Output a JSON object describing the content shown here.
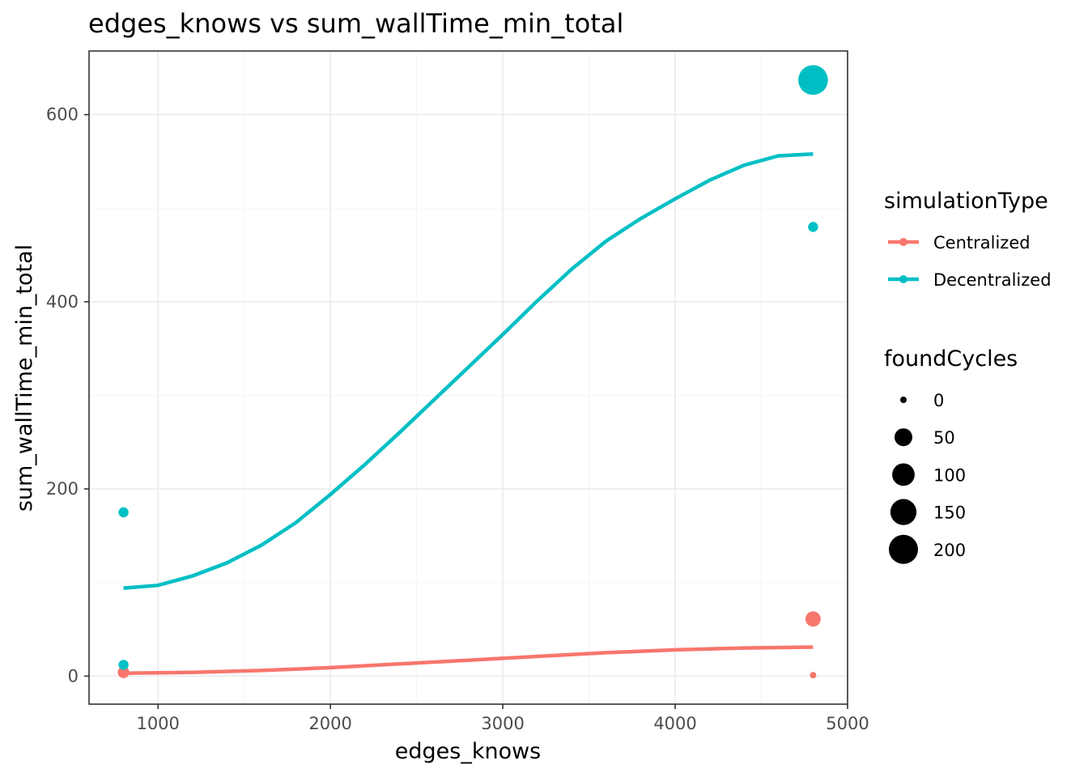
{
  "chart_data": {
    "type": "scatter",
    "title": "edges_knows  vs  sum_wallTime_min_total",
    "xlabel": "edges_knows",
    "ylabel": "sum_wallTime_min_total",
    "xlim": [
      600,
      5000
    ],
    "ylim": [
      -30,
      668
    ],
    "x_ticks": [
      1000,
      2000,
      3000,
      4000,
      5000
    ],
    "y_ticks": [
      0,
      200,
      400,
      600
    ],
    "grid": true,
    "legend_position": "right",
    "series": [
      {
        "name": "Centralized",
        "color": "#F8766D",
        "points": [
          {
            "x": 800,
            "y": 2,
            "size": 0
          },
          {
            "x": 800,
            "y": 4,
            "size": 10
          },
          {
            "x": 4800,
            "y": 1,
            "size": 0
          },
          {
            "x": 4800,
            "y": 61,
            "size": 30
          }
        ],
        "trend": {
          "x": [
            800,
            1200,
            1600,
            2000,
            2400,
            2800,
            3200,
            3600,
            4000,
            4400,
            4800
          ],
          "y": [
            3,
            4,
            6,
            9,
            13,
            17,
            21,
            25,
            28,
            30,
            31
          ]
        }
      },
      {
        "name": "Decentralized",
        "color": "#00BFC4",
        "points": [
          {
            "x": 800,
            "y": 175,
            "size": 5
          },
          {
            "x": 800,
            "y": 12,
            "size": 5
          },
          {
            "x": 4800,
            "y": 480,
            "size": 5
          },
          {
            "x": 4800,
            "y": 637,
            "size": 210
          }
        ],
        "trend": {
          "x": [
            800,
            1000,
            1200,
            1400,
            1600,
            1800,
            2000,
            2200,
            2400,
            2600,
            2800,
            3000,
            3200,
            3400,
            3600,
            3800,
            4000,
            4200,
            4400,
            4600,
            4800
          ],
          "y": [
            94,
            97,
            107,
            121,
            140,
            164,
            194,
            226,
            260,
            295,
            330,
            365,
            401,
            435,
            465,
            489,
            510,
            530,
            546,
            556,
            558
          ]
        }
      }
    ],
    "legend": {
      "color_title": "simulationType",
      "color_entries": [
        "Centralized",
        "Decentralized"
      ],
      "size_title": "foundCycles",
      "size_entries": [
        {
          "label": "0",
          "value": 0
        },
        {
          "label": "50",
          "value": 50
        },
        {
          "label": "100",
          "value": 100
        },
        {
          "label": "150",
          "value": 150
        },
        {
          "label": "200",
          "value": 200
        }
      ]
    }
  }
}
